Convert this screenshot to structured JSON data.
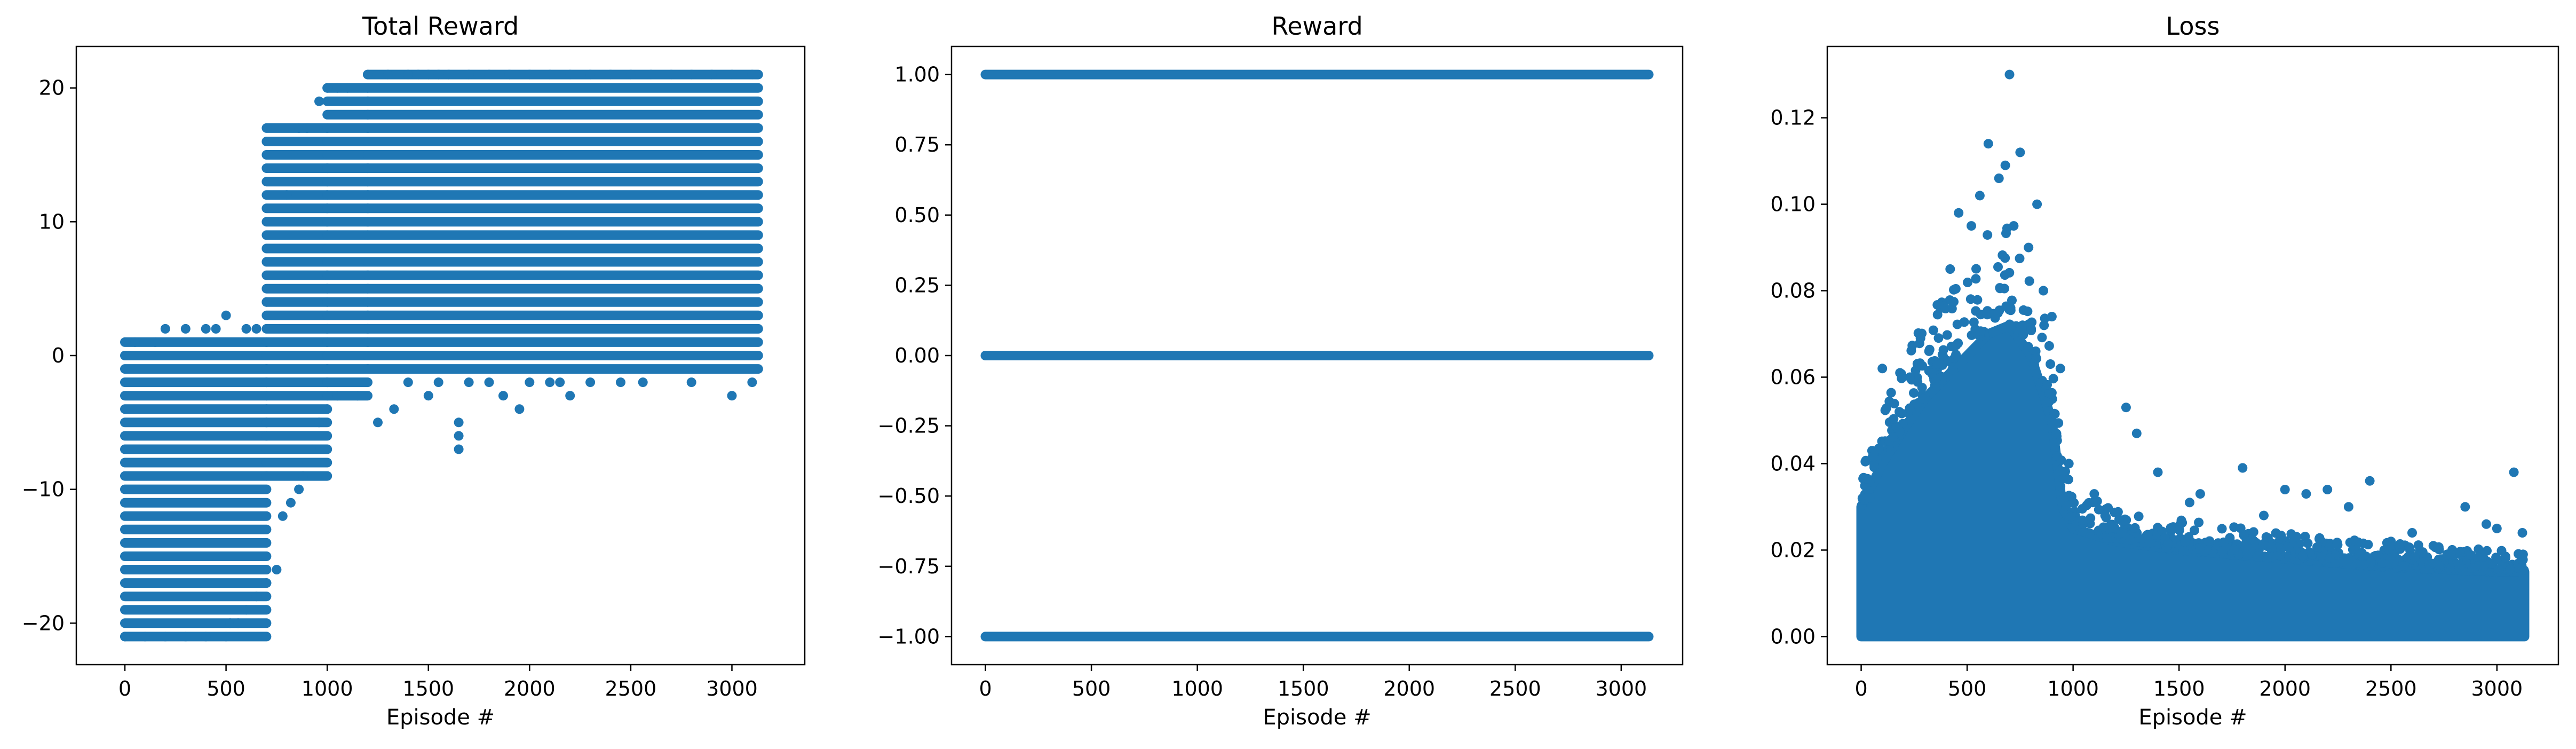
{
  "chart_data": [
    {
      "type": "scatter",
      "title": "Total Reward",
      "xlabel": "Episode #",
      "ylabel": "",
      "xlim": [
        -240,
        3360
      ],
      "ylim": [
        -23.1,
        23.1
      ],
      "xticks": [
        0,
        500,
        1000,
        1500,
        2000,
        2500,
        3000
      ],
      "yticks": [
        -20,
        -10,
        0,
        10,
        20
      ],
      "grid": false,
      "color": "#1f77b4",
      "series": [
        {
          "values_description_bands": [
            {
              "x_range": [
                0,
                700
              ],
              "y_min": -21,
              "y_max": 1
            },
            {
              "x_range": [
                700,
                1000
              ],
              "y_min": -9,
              "y_max": 17
            },
            {
              "x_range": [
                1000,
                1200
              ],
              "y_min": -3,
              "y_max": 20
            },
            {
              "x_range": [
                1200,
                3130
              ],
              "y_min": -1,
              "y_max": 21
            }
          ],
          "points": [
            [
              0,
              -21
            ],
            [
              100,
              -21
            ],
            [
              200,
              -21
            ],
            [
              300,
              -21
            ],
            [
              400,
              -21
            ],
            [
              500,
              -21
            ],
            [
              520,
              -20
            ],
            [
              560,
              -20
            ],
            [
              600,
              -19
            ],
            [
              650,
              -18
            ],
            [
              700,
              -17
            ],
            [
              750,
              -16
            ],
            [
              780,
              -12
            ],
            [
              820,
              -11
            ],
            [
              860,
              -10
            ],
            [
              880,
              -9
            ],
            [
              900,
              -8
            ],
            [
              920,
              -7
            ],
            [
              960,
              -5
            ],
            [
              1000,
              -4
            ],
            [
              50,
              1
            ],
            [
              150,
              1
            ],
            [
              200,
              2
            ],
            [
              300,
              2
            ],
            [
              400,
              2
            ],
            [
              450,
              2
            ],
            [
              500,
              3
            ],
            [
              600,
              2
            ],
            [
              650,
              2
            ],
            [
              700,
              4
            ],
            [
              760,
              7
            ],
            [
              800,
              12
            ],
            [
              830,
              15
            ],
            [
              860,
              17
            ],
            [
              900,
              17
            ],
            [
              960,
              19
            ],
            [
              1000,
              20
            ],
            [
              1050,
              20
            ],
            [
              1100,
              20
            ],
            [
              1200,
              21
            ],
            [
              1300,
              21
            ],
            [
              1400,
              21
            ],
            [
              1450,
              21
            ],
            [
              1500,
              21
            ],
            [
              1550,
              21
            ],
            [
              1600,
              21
            ],
            [
              1700,
              21
            ],
            [
              1800,
              21
            ],
            [
              1900,
              21
            ],
            [
              2000,
              21
            ],
            [
              2100,
              21
            ],
            [
              2200,
              21
            ],
            [
              2300,
              21
            ],
            [
              2400,
              21
            ],
            [
              2500,
              21
            ],
            [
              2600,
              21
            ],
            [
              2700,
              21
            ],
            [
              2800,
              21
            ],
            [
              2900,
              21
            ],
            [
              3000,
              21
            ],
            [
              3100,
              21
            ],
            [
              1050,
              -3
            ],
            [
              1150,
              -3
            ],
            [
              1250,
              -5
            ],
            [
              1330,
              -4
            ],
            [
              1400,
              -2
            ],
            [
              1500,
              -3
            ],
            [
              1550,
              -2
            ],
            [
              1650,
              -7
            ],
            [
              1650,
              -6
            ],
            [
              1650,
              -5
            ],
            [
              1700,
              -2
            ],
            [
              1800,
              -2
            ],
            [
              1870,
              -3
            ],
            [
              1950,
              -4
            ],
            [
              2000,
              -2
            ],
            [
              2100,
              -2
            ],
            [
              2150,
              -2
            ],
            [
              2200,
              -3
            ],
            [
              2300,
              -2
            ],
            [
              2450,
              -2
            ],
            [
              2560,
              -2
            ],
            [
              2800,
              -2
            ],
            [
              3000,
              -3
            ],
            [
              3100,
              -2
            ]
          ]
        }
      ]
    },
    {
      "type": "scatter",
      "title": "Reward",
      "xlabel": "Episode #",
      "ylabel": "",
      "xlim": [
        -160,
        3290
      ],
      "ylim": [
        -1.1,
        1.1
      ],
      "xticks": [
        0,
        500,
        1000,
        1500,
        2000,
        2500,
        3000
      ],
      "yticks": [
        -1.0,
        -0.75,
        -0.5,
        -0.25,
        0.0,
        0.25,
        0.5,
        0.75,
        1.0
      ],
      "ytick_labels": [
        "−1.00",
        "−0.75",
        "−0.50",
        "−0.25",
        "0.00",
        "0.25",
        "0.50",
        "0.75",
        "1.00"
      ],
      "grid": false,
      "color": "#1f77b4",
      "series": [
        {
          "name": "",
          "y_levels": [
            -1,
            0,
            1
          ],
          "x_range": [
            0,
            3130
          ]
        }
      ]
    },
    {
      "type": "scatter",
      "title": "Loss",
      "xlabel": "Episode #",
      "ylabel": "",
      "xlim": [
        -160,
        3290
      ],
      "ylim": [
        -0.0065,
        0.1365
      ],
      "xticks": [
        0,
        500,
        1000,
        1500,
        2000,
        2500,
        3000
      ],
      "yticks": [
        0.0,
        0.02,
        0.04,
        0.06,
        0.08,
        0.1,
        0.12
      ],
      "ytick_labels": [
        "0.00",
        "0.02",
        "0.04",
        "0.06",
        "0.08",
        "0.10",
        "0.12"
      ],
      "grid": false,
      "color": "#1f77b4",
      "series": [
        {
          "envelope": [
            [
              0,
              0.03
            ],
            [
              100,
              0.04
            ],
            [
              200,
              0.048
            ],
            [
              300,
              0.055
            ],
            [
              400,
              0.06
            ],
            [
              500,
              0.065
            ],
            [
              600,
              0.07
            ],
            [
              700,
              0.072
            ],
            [
              800,
              0.065
            ],
            [
              900,
              0.05
            ],
            [
              950,
              0.03
            ],
            [
              1000,
              0.025
            ],
            [
              1200,
              0.022
            ],
            [
              1500,
              0.02
            ],
            [
              2000,
              0.018
            ],
            [
              2500,
              0.016
            ],
            [
              3000,
              0.015
            ],
            [
              3130,
              0.015
            ]
          ],
          "outliers": [
            [
              40,
              0.032
            ],
            [
              100,
              0.062
            ],
            [
              180,
              0.052
            ],
            [
              230,
              0.06
            ],
            [
              280,
              0.069
            ],
            [
              320,
              0.066
            ],
            [
              360,
              0.063
            ],
            [
              420,
              0.085
            ],
            [
              460,
              0.098
            ],
            [
              520,
              0.095
            ],
            [
              560,
              0.102
            ],
            [
              600,
              0.114
            ],
            [
              650,
              0.106
            ],
            [
              680,
              0.109
            ],
            [
              700,
              0.13
            ],
            [
              720,
              0.095
            ],
            [
              750,
              0.112
            ],
            [
              790,
              0.09
            ],
            [
              830,
              0.1
            ],
            [
              860,
              0.08
            ],
            [
              900,
              0.074
            ],
            [
              940,
              0.062
            ],
            [
              980,
              0.04
            ],
            [
              1100,
              0.033
            ],
            [
              1250,
              0.053
            ],
            [
              1300,
              0.047
            ],
            [
              1400,
              0.038
            ],
            [
              1550,
              0.031
            ],
            [
              1600,
              0.033
            ],
            [
              1800,
              0.039
            ],
            [
              1900,
              0.028
            ],
            [
              2000,
              0.034
            ],
            [
              2100,
              0.033
            ],
            [
              2200,
              0.034
            ],
            [
              2300,
              0.03
            ],
            [
              2400,
              0.036
            ],
            [
              2500,
              0.022
            ],
            [
              2600,
              0.024
            ],
            [
              2700,
              0.021
            ],
            [
              2850,
              0.03
            ],
            [
              2950,
              0.026
            ],
            [
              3000,
              0.025
            ],
            [
              3080,
              0.038
            ],
            [
              3120,
              0.024
            ]
          ]
        }
      ]
    }
  ]
}
